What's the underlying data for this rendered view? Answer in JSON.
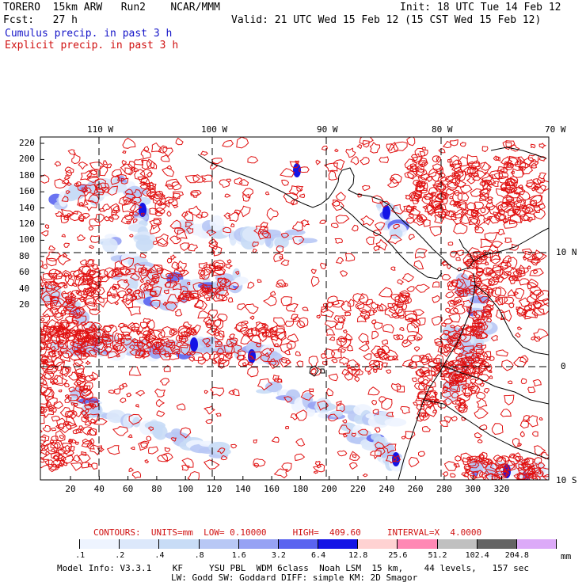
{
  "header": {
    "model": "TORERO  15km ARW   Run2    NCAR/MMM",
    "init": "Init: 18 UTC Tue 14 Feb 12",
    "fcst": "Fcst:   27 h",
    "valid": "Valid: 21 UTC Wed 15 Feb 12 (15 CST Wed 15 Feb 12)",
    "cumulus_label": "Cumulus precip. in past 3 h",
    "explicit_label": "Explicit precip. in past 3 h",
    "cumulus_color": "#1515c8",
    "explicit_color": "#d01010"
  },
  "map": {
    "top_lon_labels": [
      "110 W",
      "100 W",
      "90 W",
      "80 W",
      "70 W"
    ],
    "right_lat_labels": [
      "10 N",
      "0",
      "10 S"
    ],
    "left_ticks": [
      "220",
      "200",
      "180",
      "160",
      "140",
      "120",
      "100",
      "80",
      "60",
      "40",
      "20"
    ],
    "bottom_ticks": [
      "20",
      "40",
      "60",
      "80",
      "100",
      "120",
      "140",
      "160",
      "180",
      "200",
      "220",
      "240",
      "260",
      "280",
      "300",
      "320"
    ],
    "land_outline": "coastline",
    "contour_color": "#e01010"
  },
  "footer": {
    "contours": "CONTOURS:  UNITS=mm  LOW= 0.10000     HIGH=  409.60     INTERVAL=X  4.0000",
    "colorbar_labels": [
      ".1",
      ".2",
      ".4",
      ".8",
      "1.6",
      "3.2",
      "6.4",
      "12.8",
      "25.6",
      "51.2",
      "102.4",
      "204.8"
    ],
    "colorbar_colors": [
      "#ffffff",
      "#eef4ff",
      "#dce8fb",
      "#c8dcf6",
      "#b8c8f5",
      "#96a2f4",
      "#5a64f0",
      "#1414e6",
      "#ffd2d2",
      "#ff88b4",
      "#c0c0c0",
      "#646464",
      "#dcaaf8"
    ],
    "units": "mm",
    "model_info_1": "Model Info: V3.3.1    KF     YSU PBL  WDM 6class  Noah LSM  15 km,    44 levels,   157 sec",
    "model_info_2": "LW: Godd SW: Goddard DIFF: simple KM: 2D Smagor"
  }
}
